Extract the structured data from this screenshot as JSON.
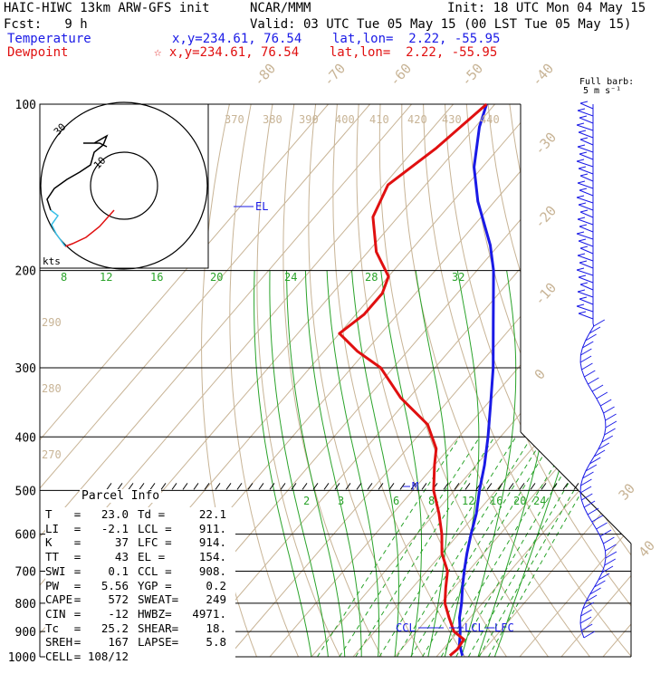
{
  "header": {
    "model": "HAIC-HIWC 13km ARW-GFS init",
    "org": "NCAR/MMM",
    "init": "Init: 18 UTC Mon 04 May 15",
    "fcst": "Fcst:   9 h",
    "valid": "Valid: 03 UTC Tue 05 May 15 (00 LST Tue 05 May 15)",
    "temp_label": "Temperature",
    "temp_loc": "x,y=234.61, 76.54    lat,lon=  2.22, -55.95",
    "dew_label": "Dewpoint",
    "dew_loc": "☆ x,y=234.61, 76.54    lat,lon=  2.22, -55.95"
  },
  "colors": {
    "temperature": "#1a1ae6",
    "dewpoint": "#e01010",
    "isotherm": "#c8b496",
    "mixing": "#2aa32a",
    "barb": "#1a1ae6"
  },
  "barb_key": {
    "line1": "Full barb:",
    "line2": "5 m s⁻¹"
  },
  "hodograph": {
    "ring_label": "30",
    "inner_label": "10",
    "kts_label": "kts"
  },
  "parcel_info": {
    "title": "Parcel Info",
    "rows": [
      [
        "T",
        "=   23.0",
        "Td =",
        "22.1"
      ],
      [
        "LI",
        "=   -2.1",
        "LCL =",
        "911."
      ],
      [
        "K",
        "=     37",
        "LFC =",
        "914."
      ],
      [
        "TT",
        "=     43",
        "EL =",
        "154."
      ],
      [
        "SWI",
        "=    0.1",
        "CCL =",
        "908."
      ],
      [
        "PW",
        "=   5.56",
        "YGP =",
        "0.2"
      ],
      [
        "CAPE",
        "=    572",
        "SWEAT=",
        "249"
      ],
      [
        "CIN",
        "=    -12",
        "HWBZ=",
        "4971."
      ],
      [
        "Tc",
        "=   25.2",
        "SHEAR=",
        "18."
      ],
      [
        "SREH",
        "=    167",
        "LAPSE=",
        "5.8"
      ],
      [
        "CELL",
        "= 108/12",
        "",
        ""
      ]
    ]
  },
  "chart_data": {
    "type": "line",
    "title": "HAIC-HIWC 13km ARW-GFS init",
    "pressure_levels": [
      100,
      200,
      300,
      400,
      500,
      600,
      700,
      800,
      900,
      1000
    ],
    "pressure_labels": [
      "100",
      "200",
      "300",
      "400",
      "500",
      "600",
      "700",
      "800",
      "900",
      "1000"
    ],
    "isotherm_labels": [
      "-80",
      "-70",
      "-60",
      "-50",
      "-40",
      "-30",
      "-20",
      "-10",
      "0",
      "30",
      "40"
    ],
    "theta_labels": [
      "370",
      "380",
      "390",
      "400",
      "410",
      "420",
      "430",
      "440",
      "290",
      "280",
      "270"
    ],
    "mixing_ratio_labels_upper": [
      "8",
      "12",
      "16",
      "20",
      "24",
      "28",
      "32"
    ],
    "mixing_ratio_labels_lower": [
      "2",
      "3",
      "6",
      "8",
      "12",
      "16",
      "20",
      "24"
    ],
    "level_markers": [
      "EL",
      "M",
      "CCL",
      "LCL",
      "LFC"
    ],
    "series": [
      {
        "name": "Temperature",
        "points_p_T": [
          [
            995,
            26
          ],
          [
            950,
            23
          ],
          [
            900,
            20.5
          ],
          [
            850,
            17.5
          ],
          [
            800,
            15
          ],
          [
            750,
            12
          ],
          [
            700,
            9
          ],
          [
            650,
            6
          ],
          [
            600,
            3
          ],
          [
            550,
            0
          ],
          [
            500,
            -4
          ],
          [
            450,
            -8
          ],
          [
            400,
            -13
          ],
          [
            350,
            -19
          ],
          [
            300,
            -26
          ],
          [
            250,
            -35
          ],
          [
            200,
            -46
          ],
          [
            180,
            -52
          ],
          [
            150,
            -64
          ],
          [
            130,
            -72
          ],
          [
            110,
            -79
          ],
          [
            100,
            -82
          ]
        ]
      },
      {
        "name": "Dewpoint",
        "points_p_T": [
          [
            995,
            23
          ],
          [
            970,
            23.5
          ],
          [
            930,
            23
          ],
          [
            900,
            19
          ],
          [
            850,
            15
          ],
          [
            800,
            11
          ],
          [
            750,
            8
          ],
          [
            700,
            5
          ],
          [
            650,
            0
          ],
          [
            600,
            -4
          ],
          [
            550,
            -9
          ],
          [
            500,
            -15
          ],
          [
            450,
            -20
          ],
          [
            420,
            -23
          ],
          [
            380,
            -30
          ],
          [
            340,
            -42
          ],
          [
            300,
            -53
          ],
          [
            280,
            -62
          ],
          [
            260,
            -70
          ],
          [
            240,
            -68
          ],
          [
            220,
            -68
          ],
          [
            205,
            -70
          ],
          [
            185,
            -78
          ],
          [
            160,
            -86
          ],
          [
            140,
            -89
          ],
          [
            120,
            -85
          ],
          [
            100,
            -82
          ]
        ]
      }
    ]
  }
}
